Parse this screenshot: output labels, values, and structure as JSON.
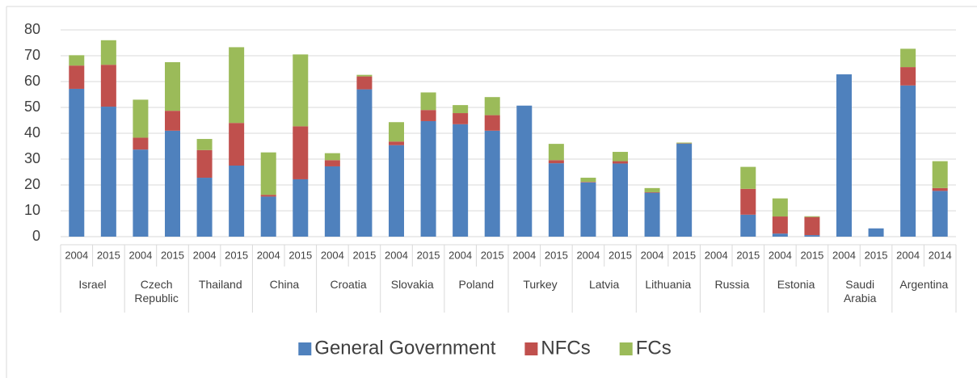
{
  "chart_data": {
    "type": "stacked_bar",
    "categories": [
      "2004",
      "2015",
      "2004",
      "2015",
      "2004",
      "2015",
      "2004",
      "2015",
      "2004",
      "2015",
      "2004",
      "2015",
      "2004",
      "2015",
      "2004",
      "2015",
      "2004",
      "2015",
      "2004",
      "2015",
      "2004",
      "2015",
      "2004",
      "2015",
      "2004",
      "2015",
      "2004",
      "2014"
    ],
    "groups": [
      "Israel",
      "Czech Republic",
      "Thailand",
      "China",
      "Croatia",
      "Slovakia",
      "Poland",
      "Turkey",
      "Latvia",
      "Lithuania",
      "Russia",
      "Estonia",
      "Saudi Arabia",
      "Argentina"
    ],
    "series": [
      {
        "name": "General Government",
        "color": "#4f81bd",
        "values": [
          57.2,
          50.3,
          33.7,
          41,
          22.8,
          27.5,
          15.5,
          22.2,
          27.2,
          57,
          35.4,
          44.7,
          43.5,
          41,
          50.7,
          28.4,
          21,
          28.3,
          17,
          36,
          null,
          8.5,
          1.2,
          0.6,
          62.8,
          3.2,
          58.5,
          17.7
        ]
      },
      {
        "name": "NFCs",
        "color": "#c0504d",
        "values": [
          9,
          16.2,
          4.6,
          7.7,
          10.7,
          16.5,
          0.7,
          20.5,
          2.4,
          5,
          1.4,
          4.3,
          4.3,
          6,
          0,
          1.2,
          0.2,
          0.9,
          0.2,
          0.1,
          null,
          10,
          6.6,
          7,
          0,
          0,
          7.1,
          1.1
        ]
      },
      {
        "name": "FCs",
        "color": "#9bbb59",
        "values": [
          4,
          9.5,
          14.7,
          18.8,
          4.3,
          29.3,
          16.4,
          27.8,
          2.7,
          0.6,
          7.5,
          6.8,
          3.1,
          7,
          0,
          6.3,
          1.6,
          3.6,
          1.6,
          0.3,
          null,
          8.5,
          7,
          0.3,
          0,
          0,
          7.1,
          10.4
        ]
      }
    ],
    "ylim": [
      0,
      80
    ],
    "yticks": [
      0,
      10,
      20,
      30,
      40,
      50,
      60,
      70,
      80
    ],
    "grid": true,
    "legend": "bottom"
  }
}
